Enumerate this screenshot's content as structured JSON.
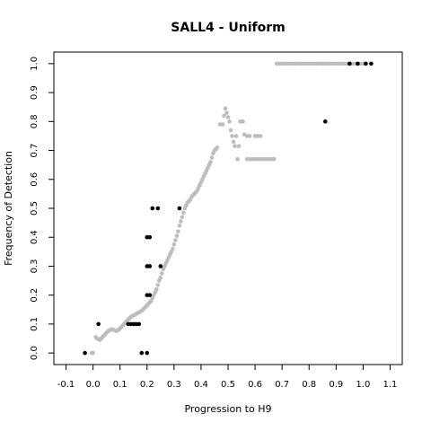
{
  "chart_data": {
    "type": "scatter",
    "title": "SALL4 - Uniform",
    "xlabel": "Progression to H9",
    "ylabel": "Frequency of Detection",
    "xlim": [
      -0.145,
      1.145
    ],
    "ylim": [
      -0.04,
      1.04
    ],
    "x_ticks": [
      -0.1,
      0.0,
      0.1,
      0.2,
      0.3,
      0.4,
      0.5,
      0.6,
      0.7,
      0.8,
      0.9,
      1.0,
      1.1
    ],
    "x_tick_labels": [
      "-0.1",
      "0.0",
      "0.1",
      "0.2",
      "0.3",
      "0.4",
      "0.5",
      "0.6",
      "0.7",
      "0.8",
      "0.9",
      "1.0",
      "1.1"
    ],
    "y_ticks": [
      0.0,
      0.1,
      0.2,
      0.3,
      0.4,
      0.5,
      0.6,
      0.7,
      0.8,
      0.9,
      1.0
    ],
    "y_tick_labels": [
      "0.0",
      "0.1",
      "0.2",
      "0.3",
      "0.4",
      "0.5",
      "0.6",
      "0.7",
      "0.8",
      "0.9",
      "1.0"
    ],
    "grid": false,
    "series": [
      {
        "color": "#bdbdbd",
        "points": [
          [
            -0.005,
            0.0
          ],
          [
            0.0,
            0.0
          ],
          [
            0.01,
            0.055
          ],
          [
            0.015,
            0.05
          ],
          [
            0.02,
            0.048
          ],
          [
            0.025,
            0.045
          ],
          [
            0.03,
            0.05
          ],
          [
            0.035,
            0.055
          ],
          [
            0.04,
            0.06
          ],
          [
            0.045,
            0.065
          ],
          [
            0.05,
            0.07
          ],
          [
            0.055,
            0.075
          ],
          [
            0.06,
            0.078
          ],
          [
            0.065,
            0.08
          ],
          [
            0.07,
            0.082
          ],
          [
            0.075,
            0.08
          ],
          [
            0.08,
            0.078
          ],
          [
            0.085,
            0.076
          ],
          [
            0.09,
            0.078
          ],
          [
            0.095,
            0.08
          ],
          [
            0.1,
            0.085
          ],
          [
            0.105,
            0.09
          ],
          [
            0.11,
            0.095
          ],
          [
            0.115,
            0.1
          ],
          [
            0.12,
            0.105
          ],
          [
            0.125,
            0.11
          ],
          [
            0.13,
            0.115
          ],
          [
            0.135,
            0.12
          ],
          [
            0.14,
            0.125
          ],
          [
            0.145,
            0.128
          ],
          [
            0.15,
            0.13
          ],
          [
            0.155,
            0.132
          ],
          [
            0.16,
            0.135
          ],
          [
            0.165,
            0.138
          ],
          [
            0.17,
            0.14
          ],
          [
            0.175,
            0.143
          ],
          [
            0.18,
            0.146
          ],
          [
            0.185,
            0.15
          ],
          [
            0.19,
            0.155
          ],
          [
            0.195,
            0.16
          ],
          [
            0.2,
            0.165
          ],
          [
            0.205,
            0.17
          ],
          [
            0.21,
            0.175
          ],
          [
            0.215,
            0.18
          ],
          [
            0.22,
            0.19
          ],
          [
            0.225,
            0.2
          ],
          [
            0.23,
            0.21
          ],
          [
            0.235,
            0.22
          ],
          [
            0.24,
            0.235
          ],
          [
            0.245,
            0.25
          ],
          [
            0.25,
            0.26
          ],
          [
            0.255,
            0.275
          ],
          [
            0.26,
            0.29
          ],
          [
            0.265,
            0.3
          ],
          [
            0.27,
            0.31
          ],
          [
            0.275,
            0.32
          ],
          [
            0.28,
            0.33
          ],
          [
            0.285,
            0.34
          ],
          [
            0.29,
            0.35
          ],
          [
            0.295,
            0.36
          ],
          [
            0.3,
            0.375
          ],
          [
            0.305,
            0.39
          ],
          [
            0.31,
            0.405
          ],
          [
            0.315,
            0.42
          ],
          [
            0.32,
            0.44
          ],
          [
            0.325,
            0.455
          ],
          [
            0.33,
            0.47
          ],
          [
            0.335,
            0.485
          ],
          [
            0.34,
            0.5
          ],
          [
            0.345,
            0.51
          ],
          [
            0.35,
            0.52
          ],
          [
            0.355,
            0.525
          ],
          [
            0.36,
            0.53
          ],
          [
            0.365,
            0.54
          ],
          [
            0.37,
            0.545
          ],
          [
            0.375,
            0.55
          ],
          [
            0.38,
            0.555
          ],
          [
            0.385,
            0.56
          ],
          [
            0.39,
            0.57
          ],
          [
            0.395,
            0.58
          ],
          [
            0.4,
            0.59
          ],
          [
            0.405,
            0.6
          ],
          [
            0.41,
            0.61
          ],
          [
            0.415,
            0.62
          ],
          [
            0.42,
            0.63
          ],
          [
            0.425,
            0.64
          ],
          [
            0.43,
            0.65
          ],
          [
            0.435,
            0.66
          ],
          [
            0.44,
            0.675
          ],
          [
            0.445,
            0.69
          ],
          [
            0.45,
            0.7
          ],
          [
            0.455,
            0.705
          ],
          [
            0.46,
            0.71
          ],
          [
            0.47,
            0.79
          ],
          [
            0.48,
            0.79
          ],
          [
            0.485,
            0.82
          ],
          [
            0.49,
            0.845
          ],
          [
            0.495,
            0.83
          ],
          [
            0.5,
            0.815
          ],
          [
            0.505,
            0.8
          ],
          [
            0.51,
            0.77
          ],
          [
            0.515,
            0.75
          ],
          [
            0.52,
            0.73
          ],
          [
            0.525,
            0.715
          ],
          [
            0.53,
            0.75
          ],
          [
            0.535,
            0.67
          ],
          [
            0.54,
            0.715
          ],
          [
            0.545,
            0.8
          ],
          [
            0.55,
            0.8
          ],
          [
            0.555,
            0.8
          ],
          [
            0.56,
            0.755
          ],
          [
            0.57,
            0.75
          ],
          [
            0.58,
            0.75
          ],
          [
            0.6,
            0.75
          ],
          [
            0.61,
            0.75
          ],
          [
            0.62,
            0.75
          ],
          [
            0.57,
            0.67
          ],
          [
            0.58,
            0.67
          ],
          [
            0.59,
            0.67
          ],
          [
            0.6,
            0.67
          ],
          [
            0.61,
            0.67
          ],
          [
            0.62,
            0.67
          ],
          [
            0.63,
            0.67
          ],
          [
            0.64,
            0.67
          ],
          [
            0.65,
            0.67
          ],
          [
            0.66,
            0.67
          ],
          [
            0.67,
            0.67
          ],
          [
            0.68,
            1.0
          ],
          [
            0.69,
            1.0
          ],
          [
            0.7,
            1.0
          ],
          [
            0.71,
            1.0
          ],
          [
            0.72,
            1.0
          ],
          [
            0.73,
            1.0
          ],
          [
            0.74,
            1.0
          ],
          [
            0.75,
            1.0
          ],
          [
            0.76,
            1.0
          ],
          [
            0.77,
            1.0
          ],
          [
            0.78,
            1.0
          ],
          [
            0.79,
            1.0
          ],
          [
            0.8,
            1.0
          ],
          [
            0.81,
            1.0
          ],
          [
            0.82,
            1.0
          ],
          [
            0.83,
            1.0
          ],
          [
            0.84,
            1.0
          ],
          [
            0.85,
            1.0
          ],
          [
            0.86,
            1.0
          ],
          [
            0.87,
            1.0
          ],
          [
            0.88,
            1.0
          ],
          [
            0.89,
            1.0
          ],
          [
            0.9,
            1.0
          ],
          [
            0.91,
            1.0
          ],
          [
            0.92,
            1.0
          ],
          [
            0.93,
            1.0
          ],
          [
            0.94,
            1.0
          ],
          [
            0.95,
            1.0
          ],
          [
            0.96,
            1.0
          ],
          [
            0.97,
            1.0
          ],
          [
            0.98,
            1.0
          ],
          [
            0.99,
            1.0
          ],
          [
            1.0,
            1.0
          ]
        ]
      },
      {
        "color": "#000000",
        "points": [
          [
            -0.03,
            0.0
          ],
          [
            0.02,
            0.1
          ],
          [
            0.13,
            0.1
          ],
          [
            0.14,
            0.1
          ],
          [
            0.15,
            0.1
          ],
          [
            0.16,
            0.1
          ],
          [
            0.17,
            0.1
          ],
          [
            0.18,
            0.0
          ],
          [
            0.2,
            0.0
          ],
          [
            0.2,
            0.2
          ],
          [
            0.21,
            0.2
          ],
          [
            0.2,
            0.3
          ],
          [
            0.21,
            0.3
          ],
          [
            0.2,
            0.4
          ],
          [
            0.21,
            0.4
          ],
          [
            0.22,
            0.5
          ],
          [
            0.24,
            0.5
          ],
          [
            0.25,
            0.3
          ],
          [
            0.32,
            0.5
          ],
          [
            0.86,
            0.8
          ],
          [
            0.95,
            1.0
          ],
          [
            0.98,
            1.0
          ],
          [
            1.01,
            1.0
          ],
          [
            1.03,
            1.0
          ]
        ]
      }
    ]
  }
}
